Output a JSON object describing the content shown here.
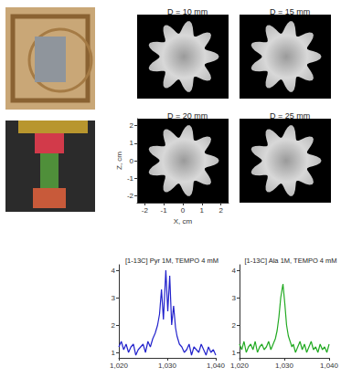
{
  "chart_data": [
    {
      "type": "image",
      "title": "D = 10 mm",
      "xlim": [
        -2.4,
        2.4
      ],
      "ylim": [
        -2.4,
        2.4
      ],
      "tick_labels": false,
      "color": "#000000"
    },
    {
      "type": "image",
      "title": "D = 15 mm",
      "xlim": [
        -2.4,
        2.4
      ],
      "ylim": [
        -2.4,
        2.4
      ],
      "tick_labels": false,
      "color": "#000000"
    },
    {
      "type": "image",
      "title": "D = 20 mm",
      "xlim": [
        -2.4,
        2.4
      ],
      "ylim": [
        -2.4,
        2.4
      ],
      "xticks": [
        -2,
        -1,
        0,
        1,
        2
      ],
      "yticks": [
        -2,
        -1,
        0,
        1,
        2
      ],
      "xlabel": "X, cm",
      "ylabel": "Z, cm",
      "color": "#000000"
    },
    {
      "type": "image",
      "title": "D = 25 mm",
      "xlim": [
        -2.4,
        2.4
      ],
      "ylim": [
        -2.4,
        2.4
      ],
      "tick_labels": false,
      "color": "#000000"
    },
    {
      "type": "line",
      "title": "[1-13C] Pyr 1M, TEMPO 4 mM",
      "color": "#2222cc",
      "x": [
        1020,
        1020.5,
        1021,
        1021.5,
        1022,
        1022.5,
        1023,
        1023.5,
        1024,
        1024.5,
        1025,
        1025.5,
        1026,
        1026.5,
        1027,
        1027.5,
        1028,
        1028.4,
        1028.8,
        1029.2,
        1029.7,
        1030.1,
        1030.5,
        1030.9,
        1031.3,
        1031.7,
        1032,
        1032.5,
        1033,
        1033.5,
        1034,
        1034.5,
        1035,
        1035.5,
        1036,
        1036.5,
        1037,
        1037.5,
        1038,
        1038.5,
        1039,
        1039.5,
        1040
      ],
      "values": [
        1.2,
        1.4,
        1.1,
        1.3,
        1.0,
        1.2,
        1.3,
        0.9,
        1.1,
        1.2,
        1.3,
        1.0,
        1.4,
        1.2,
        1.5,
        1.7,
        2.0,
        2.4,
        3.3,
        2.2,
        4.0,
        2.5,
        3.8,
        2.0,
        2.7,
        1.9,
        1.6,
        1.3,
        1.2,
        1.0,
        1.1,
        1.3,
        0.9,
        1.2,
        1.1,
        1.0,
        1.3,
        1.1,
        0.9,
        1.2,
        1.0,
        1.1,
        0.9
      ],
      "xlim": [
        1020,
        1040
      ],
      "xticks": [
        1020,
        1030,
        1040
      ],
      "ylim": [
        0.8,
        4.2
      ],
      "yticks": [
        1,
        2,
        3,
        4
      ]
    },
    {
      "type": "line",
      "title": "[1-13C] Ala 1M, TEMPO 4 mM",
      "color": "#22aa22",
      "x": [
        1020,
        1020.5,
        1021,
        1021.5,
        1022,
        1022.5,
        1023,
        1023.5,
        1024,
        1024.5,
        1025,
        1025.5,
        1026,
        1026.5,
        1027,
        1027.5,
        1028,
        1028.4,
        1028.8,
        1029.2,
        1029.7,
        1030.1,
        1030.5,
        1030.9,
        1031.3,
        1031.7,
        1032,
        1032.5,
        1033,
        1033.5,
        1034,
        1034.5,
        1035,
        1035.5,
        1036,
        1036.5,
        1037,
        1037.5,
        1038,
        1038.5,
        1039,
        1039.5,
        1040
      ],
      "values": [
        1.3,
        1.1,
        1.4,
        1.0,
        1.2,
        1.3,
        1.1,
        1.4,
        1.0,
        1.2,
        1.3,
        1.1,
        1.2,
        1.4,
        1.1,
        1.3,
        1.5,
        1.8,
        2.3,
        3.0,
        3.5,
        2.8,
        2.0,
        1.6,
        1.4,
        1.2,
        1.3,
        1.0,
        1.2,
        1.4,
        1.1,
        1.3,
        1.0,
        1.2,
        1.4,
        1.1,
        1.2,
        1.0,
        1.3,
        1.1,
        1.2,
        1.0,
        1.3
      ],
      "xlim": [
        1020,
        1040
      ],
      "xticks": [
        1020,
        1030,
        1040
      ],
      "ylim": [
        0.8,
        4.2
      ],
      "yticks": [
        1,
        2,
        3,
        4
      ]
    }
  ]
}
